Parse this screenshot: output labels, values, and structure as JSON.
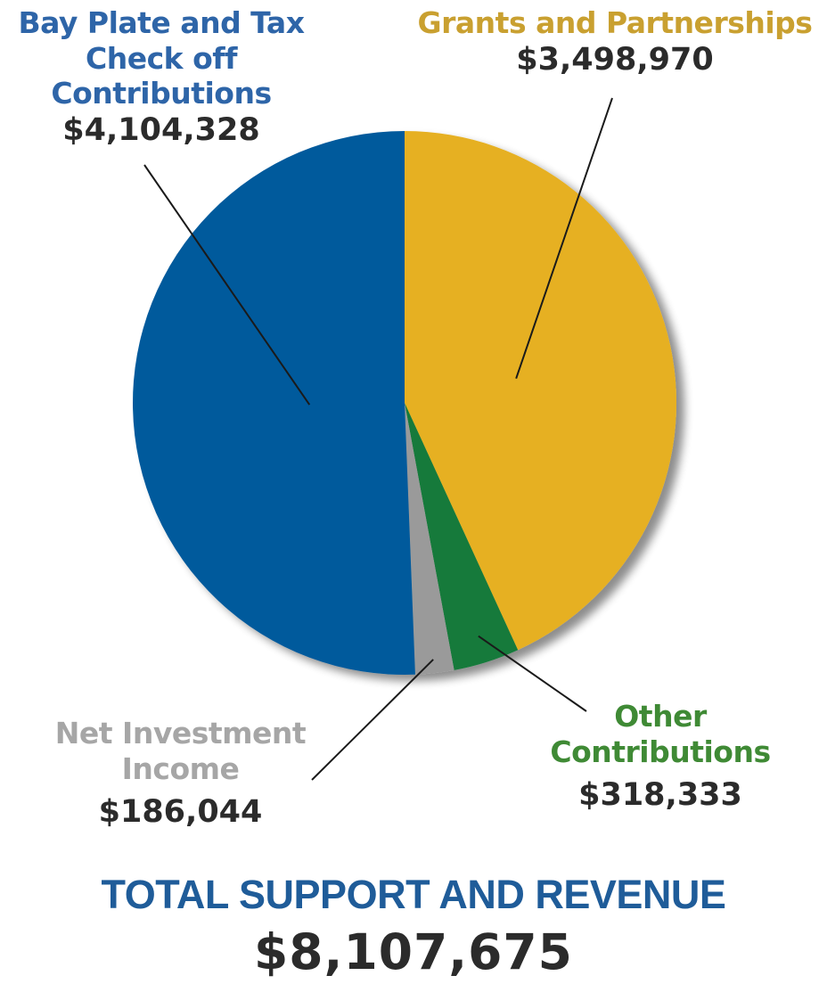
{
  "chart_data": {
    "type": "pie",
    "categories": [
      "Grants and Partnerships",
      "Other Contributions",
      "Net Investment Income",
      "Bay Plate and Tax Check off Contributions"
    ],
    "values": [
      3498970,
      318333,
      186044,
      4104328
    ],
    "value_labels": [
      "$3,498,970",
      "$318,333",
      "$186,044",
      "$4,104,328"
    ],
    "colors": [
      "#e6b022",
      "#127a3a",
      "#9a9a9a",
      "#005a9c"
    ],
    "start_angle": "12 o'clock",
    "direction": "clockwise",
    "total_label": "TOTAL SUPPORT AND REVENUE",
    "total_value": "$8,107,675",
    "total_color": "#1f5c99"
  },
  "labels": {
    "grants": {
      "name": "Grants and Partnerships",
      "value": "$3,498,970",
      "color": "#c9a030"
    },
    "other": {
      "name_line1": "Other",
      "name_line2": "Contributions",
      "value": "$318,333",
      "color": "#3f8a35"
    },
    "investment": {
      "name_line1": "Net Investment",
      "name_line2": "Income",
      "value": "$186,044",
      "color": "#a6a6a6"
    },
    "bay": {
      "name_line1": "Bay Plate and Tax",
      "name_line2": "Check off",
      "name_line3": "Contributions",
      "value": "$4,104,328",
      "color": "#2e65a8"
    }
  }
}
